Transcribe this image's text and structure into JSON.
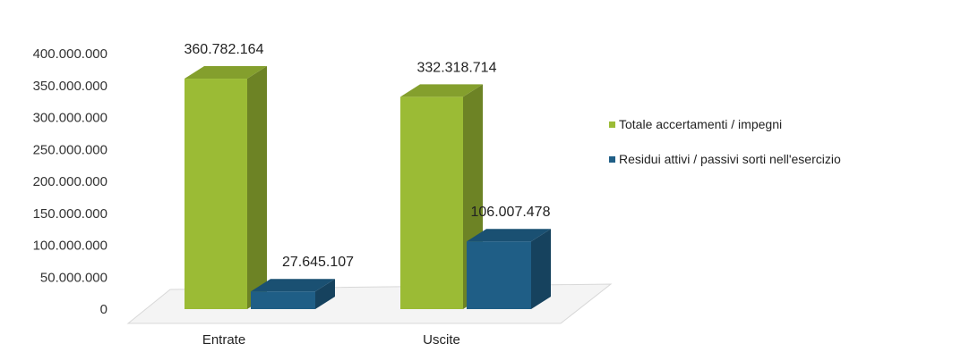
{
  "chart_data": {
    "type": "bar",
    "categories": [
      "Entrate",
      "Uscite"
    ],
    "series": [
      {
        "name": "Totale accertamenti / impegni",
        "color": "#9bbb35",
        "values": [
          360782164,
          332318714
        ]
      },
      {
        "name": "Residui attivi / passivi sorti nell'esercizio",
        "color": "#1f5e86",
        "values": [
          27645107,
          106007478
        ]
      }
    ],
    "data_labels": [
      [
        "360.782.164",
        "332.318.714"
      ],
      [
        "27.645.107",
        "106.007.478"
      ]
    ],
    "y_ticks": [
      "0",
      "50.000.000",
      "100.000.000",
      "150.000.000",
      "200.000.000",
      "250.000.000",
      "300.000.000",
      "350.000.000",
      "400.000.000"
    ],
    "ylim": [
      0,
      400000000
    ],
    "title": "",
    "xlabel": "",
    "ylabel": "",
    "grid": false,
    "legend_position": "right",
    "three_d": true
  }
}
